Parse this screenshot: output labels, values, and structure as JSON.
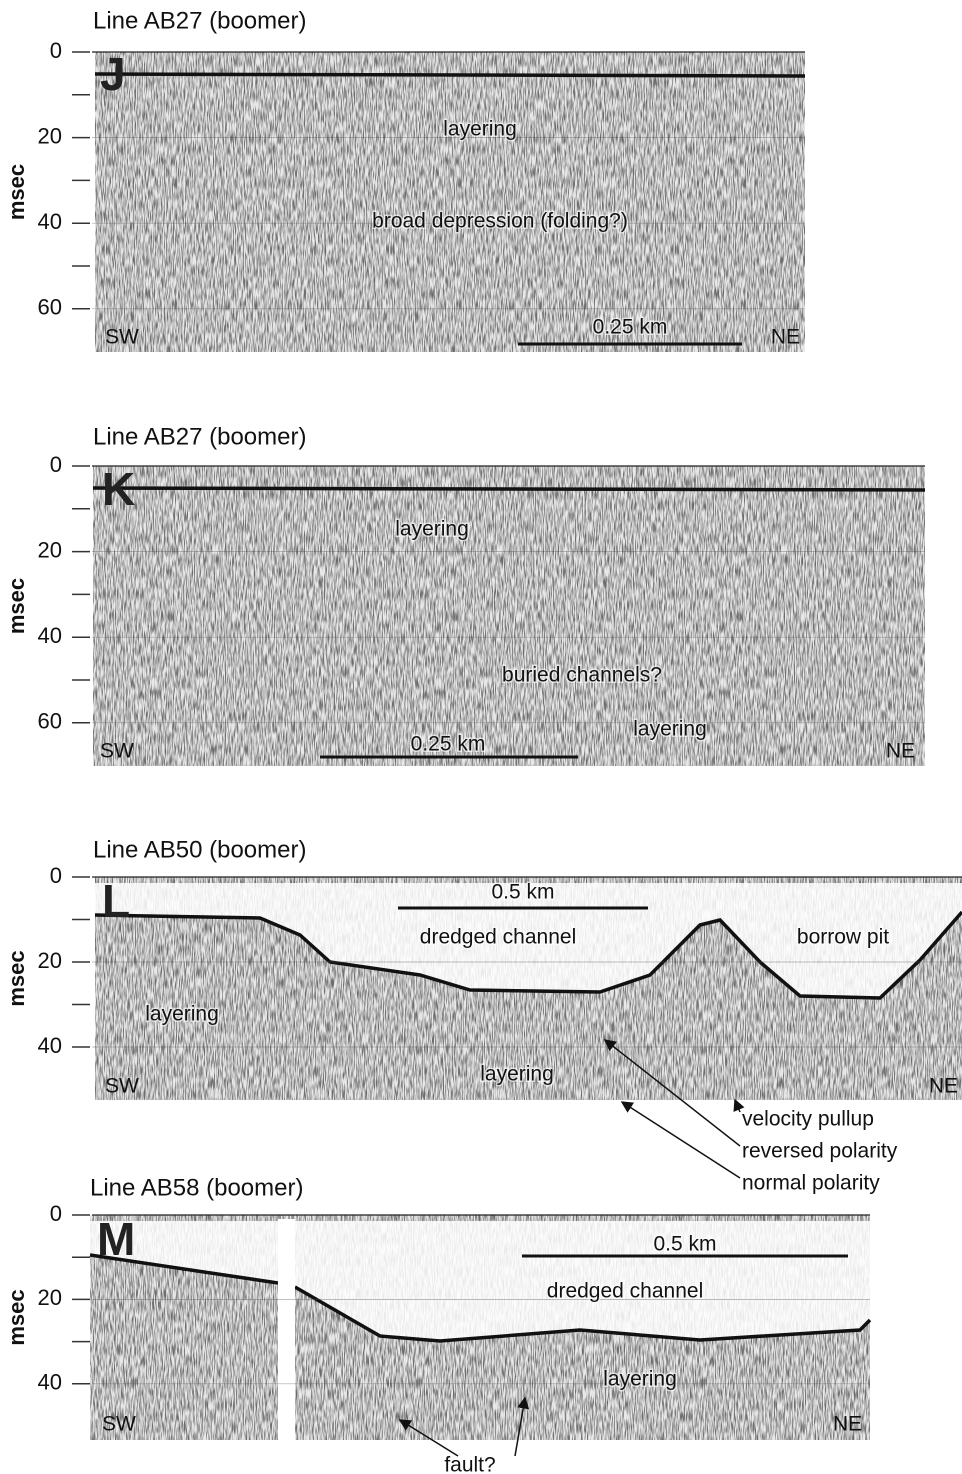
{
  "panels": [
    {
      "title": "Line AB27 (boomer)",
      "letter": "J",
      "axis_label": "msec",
      "ticks": [
        0,
        20,
        40,
        60
      ],
      "left": "SW",
      "right": "NE",
      "scale_bar": "0.25 km",
      "annotations": [
        "layering",
        "broad depression (folding?)"
      ]
    },
    {
      "title": "Line AB27 (boomer)",
      "letter": "K",
      "axis_label": "msec",
      "ticks": [
        0,
        20,
        40,
        60
      ],
      "left": "SW",
      "right": "NE",
      "scale_bar": "0.25 km",
      "annotations": [
        "layering",
        "buried channels?",
        "layering"
      ]
    },
    {
      "title": "Line AB50 (boomer)",
      "letter": "L",
      "axis_label": "msec",
      "ticks": [
        0,
        20,
        40
      ],
      "left": "SW",
      "right": "NE",
      "scale_bar": "0.5 km",
      "annotations": [
        "dredged channel",
        "borrow pit",
        "layering",
        "layering",
        "velocity pullup",
        "reversed polarity",
        "normal polarity"
      ]
    },
    {
      "title": "Line AB58 (boomer)",
      "letter": "M",
      "axis_label": "msec",
      "ticks": [
        0,
        20,
        40
      ],
      "left": "SW",
      "right": "NE",
      "scale_bar": "0.5 km",
      "annotations": [
        "dredged channel",
        "layering",
        "fault?"
      ]
    }
  ]
}
